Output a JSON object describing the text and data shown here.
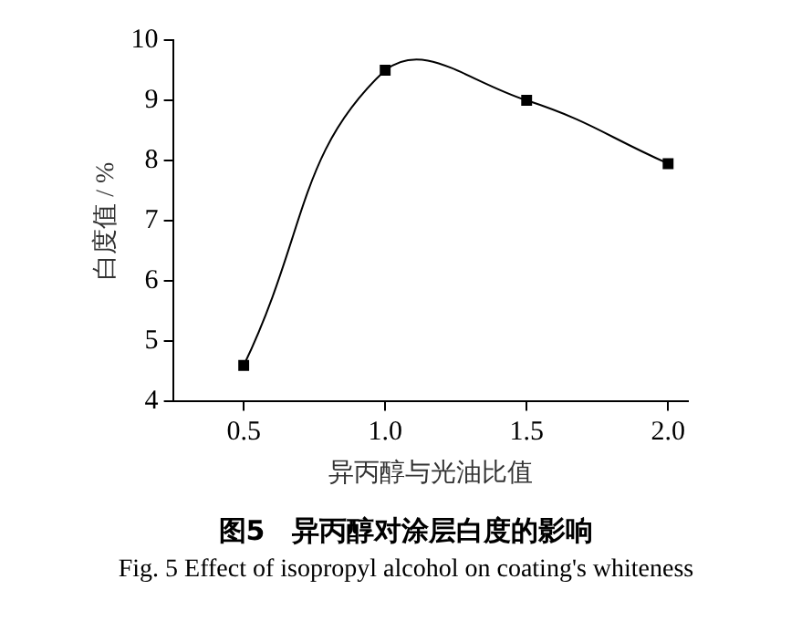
{
  "chart_data": {
    "type": "line",
    "title": "图5　异丙醇对涂层白度的影响",
    "annotations": [
      "Fig. 5 Effect of isopropyl alcohol on coating's whiteness"
    ],
    "xlabel": "异丙醇与光油比值",
    "ylabel": "白度值 / %",
    "x": [
      0.5,
      1.0,
      1.5,
      2.0
    ],
    "series": [
      {
        "color": "#000000",
        "values": [
          4.6,
          9.5,
          9.0,
          7.95
        ]
      }
    ],
    "xlim": [
      0.25,
      2.07
    ],
    "xticks": [
      {
        "value": 0.5,
        "label": "0.5"
      },
      {
        "value": 1.0,
        "label": "1.0"
      },
      {
        "value": 1.5,
        "label": "1.5"
      },
      {
        "value": 2.0,
        "label": "2.0"
      }
    ],
    "ylim": [
      4,
      10
    ],
    "yticks": [
      4,
      5,
      6,
      7,
      8,
      9,
      10
    ],
    "marker": "square",
    "line_style": "solid",
    "grid": false,
    "legend": false
  }
}
